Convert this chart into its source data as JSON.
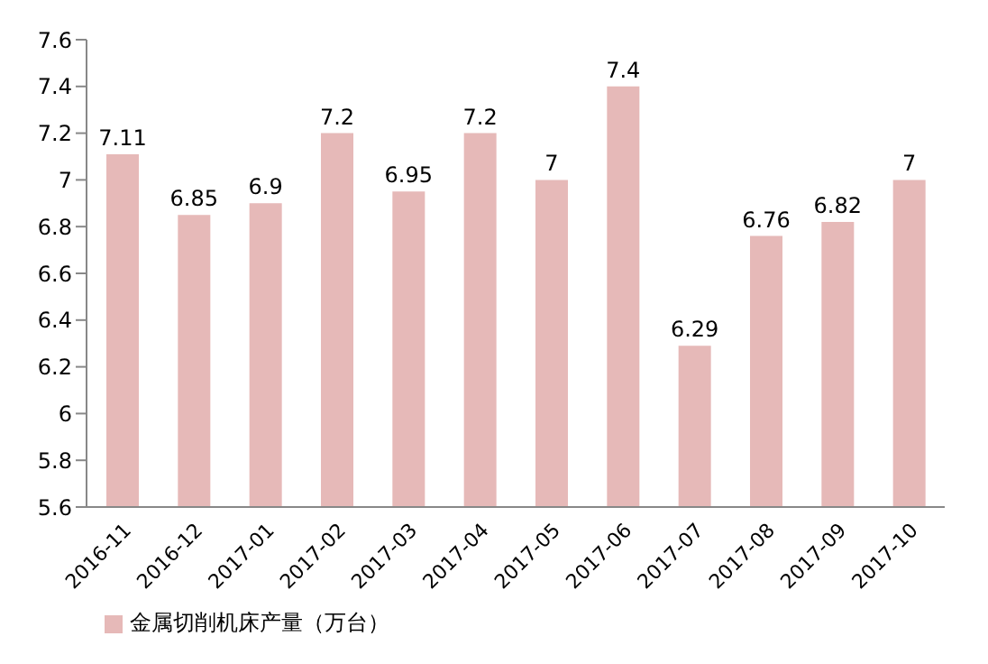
{
  "chart_data": {
    "type": "bar",
    "categories": [
      "2016-11",
      "2016-12",
      "2017-01",
      "2017-02",
      "2017-03",
      "2017-04",
      "2017-05",
      "2017-06",
      "2017-07",
      "2017-08",
      "2017-09",
      "2017-10"
    ],
    "series": [
      {
        "name": "金属切削机床产量（万台）",
        "color": "#e6b9b8",
        "values": [
          7.11,
          6.85,
          6.9,
          7.2,
          6.95,
          7.2,
          7,
          7.4,
          6.29,
          6.76,
          6.82,
          7
        ]
      }
    ],
    "ylim": [
      5.6,
      7.6
    ],
    "yticks": [
      5.6,
      5.8,
      6,
      6.2,
      6.4,
      6.6,
      6.8,
      7,
      7.2,
      7.4,
      7.6
    ],
    "data_labels": true,
    "legend": "bottom left"
  }
}
